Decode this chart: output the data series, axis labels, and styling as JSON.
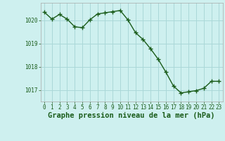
{
  "x": [
    0,
    1,
    2,
    3,
    4,
    5,
    6,
    7,
    8,
    9,
    10,
    11,
    12,
    13,
    14,
    15,
    16,
    17,
    18,
    19,
    20,
    21,
    22,
    23
  ],
  "y": [
    1020.35,
    1020.05,
    1020.25,
    1020.05,
    1019.72,
    1019.68,
    1020.02,
    1020.27,
    1020.32,
    1020.37,
    1020.42,
    1020.02,
    1019.47,
    1019.17,
    1018.77,
    1018.32,
    1017.77,
    1017.17,
    1016.87,
    1016.92,
    1016.97,
    1017.07,
    1017.37,
    1017.37
  ],
  "line_color": "#1a5c1a",
  "marker": "+",
  "markersize": 4,
  "linewidth": 1.0,
  "bg_color": "#cef0ef",
  "grid_color": "#aad8d8",
  "xlabel": "Graphe pression niveau de la mer (hPa)",
  "ytick_vals": [
    1017,
    1018,
    1019,
    1020
  ],
  "ytick_labels": [
    "1017",
    "1018",
    "1019",
    "1020"
  ],
  "ylim": [
    1016.5,
    1020.75
  ],
  "xlim": [
    -0.5,
    23.5
  ],
  "xtick_labels": [
    "0",
    "1",
    "2",
    "3",
    "4",
    "5",
    "6",
    "7",
    "8",
    "9",
    "10",
    "11",
    "12",
    "13",
    "14",
    "15",
    "16",
    "17",
    "18",
    "19",
    "20",
    "21",
    "22",
    "23"
  ],
  "tick_fontsize": 5.5,
  "label_fontsize": 7.5
}
